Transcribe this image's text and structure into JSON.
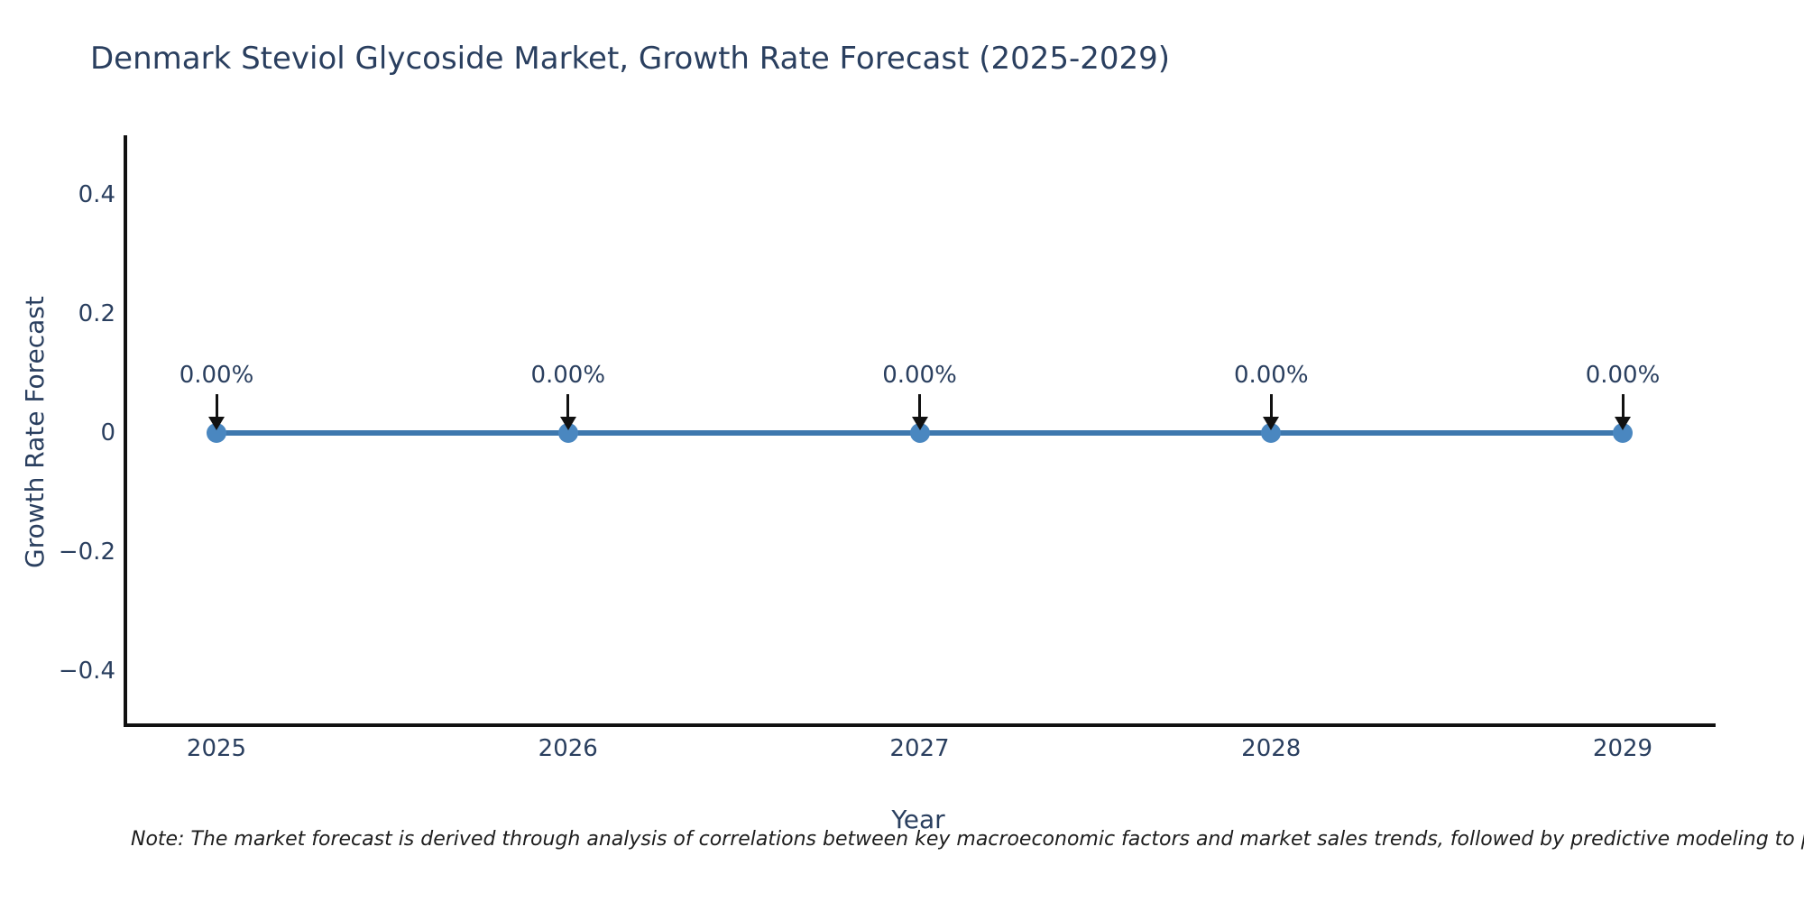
{
  "note": "Note: The market forecast is derived through analysis of correlations between key macroeconomic factors and market sales trends, followed by predictive modeling to project future sa",
  "chart_data": {
    "type": "line",
    "title": "Denmark Steviol Glycoside Market, Growth Rate Forecast (2025-2029)",
    "x_categories": [
      "2025",
      "2026",
      "2027",
      "2028",
      "2029"
    ],
    "series": [
      {
        "name": "Growth Rate Forecast",
        "values": [
          0,
          0,
          0,
          0,
          0
        ]
      }
    ],
    "point_labels": [
      "0.00%",
      "0.00%",
      "0.00%",
      "0.00%",
      "0.00%"
    ],
    "xlabel": "Year",
    "ylabel": "Growth Rate Forecast",
    "yticks": [
      {
        "label": "0.4",
        "value": 0.4
      },
      {
        "label": "0.2",
        "value": 0.2
      },
      {
        "label": "0",
        "value": 0.0
      },
      {
        "label": "−0.2",
        "value": -0.2
      },
      {
        "label": "−0.4",
        "value": -0.4
      }
    ],
    "ylim": [
      -0.5,
      0.5
    ],
    "grid": false,
    "legend": "none",
    "colors": {
      "line": "#3e78ae",
      "marker": "#4a87c0",
      "arrow": "#111111",
      "axis": "#111111",
      "text": "#2a3f5f"
    }
  }
}
